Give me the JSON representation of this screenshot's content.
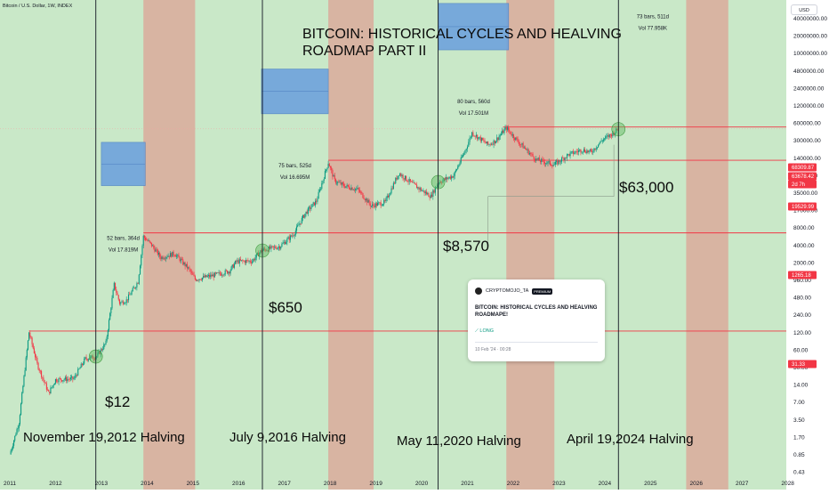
{
  "header": {
    "symbol_line": "Bitcoin / U.S. Dollar, 1W, INDEX",
    "currency_button": "USD"
  },
  "title": {
    "line1": "BITCOIN: HISTORICAL CYCLES AND HEALVING",
    "line2": "ROADMAP PART II"
  },
  "chart_data": {
    "type": "candlestick",
    "scale": "log",
    "years": [
      2011,
      2012,
      2013,
      2014,
      2015,
      2016,
      2017,
      2018,
      2019,
      2020,
      2021,
      2022,
      2023,
      2024,
      2025,
      2026,
      2027,
      2028
    ],
    "price_axis_ticks": [
      "40000000.00",
      "20000000.00",
      "10000000.00",
      "4800000.00",
      "2400000.00",
      "1200000.00",
      "600000.00",
      "300000.00",
      "140000.00",
      "70000.00",
      "35000.00",
      "17000.00",
      "8000.00",
      "4000.00",
      "2000.00",
      "960.00",
      "480.00",
      "240.00",
      "120.00",
      "60.00",
      "30.00",
      "14.00",
      "7.00",
      "3.50",
      "1.70",
      "0.85",
      "0.43"
    ],
    "price_tags": [
      {
        "label": "68309.87",
        "color": "#f23645"
      },
      {
        "label": "63678.42",
        "color": "#f23645"
      },
      {
        "label": "2d 7h",
        "color": "#f23645"
      },
      {
        "label": "19529.99",
        "color": "#f23645"
      },
      {
        "label": "1265.18",
        "color": "#f23645"
      },
      {
        "label": "31.33",
        "color": "#f23645"
      }
    ],
    "horizontal_levels": [
      68309.87,
      19529.99,
      1265.18,
      31.33
    ],
    "halvings": [
      {
        "label": "November 19,2012 Halving",
        "price_marker": "$12",
        "marker_price": 12
      },
      {
        "label": "July 9,2016 Halving",
        "price_marker": "$650",
        "marker_price": 650
      },
      {
        "label": "May 11,2020 Halving",
        "price_marker": "$8,570",
        "marker_price": 8570
      },
      {
        "label": "April 19,2024 Halving",
        "price_marker": "$63,000",
        "marker_price": 63000
      }
    ],
    "range_boxes": [
      {
        "bars": "52 bars, 364d",
        "vol": "Vol 17.819M"
      },
      {
        "bars": "75 bars, 525d",
        "vol": "Vol 16.695M"
      },
      {
        "bars": "80 bars, 560d",
        "vol": "Vol 17.501M"
      },
      {
        "bars": "73 bars, 511d",
        "vol": "Vol 77.958K"
      }
    ],
    "price_series": [
      [
        2011.0,
        0.3
      ],
      [
        2011.2,
        1
      ],
      [
        2011.42,
        30
      ],
      [
        2011.6,
        9
      ],
      [
        2011.85,
        3
      ],
      [
        2012.0,
        5
      ],
      [
        2012.4,
        5.2
      ],
      [
        2012.65,
        11
      ],
      [
        2012.9,
        12
      ],
      [
        2013.1,
        20
      ],
      [
        2013.28,
        180
      ],
      [
        2013.4,
        90
      ],
      [
        2013.55,
        100
      ],
      [
        2013.8,
        200
      ],
      [
        2013.92,
        1100
      ],
      [
        2014.1,
        800
      ],
      [
        2014.3,
        500
      ],
      [
        2014.6,
        580
      ],
      [
        2014.9,
        330
      ],
      [
        2015.05,
        220
      ],
      [
        2015.5,
        260
      ],
      [
        2015.8,
        300
      ],
      [
        2015.95,
        430
      ],
      [
        2016.3,
        440
      ],
      [
        2016.5,
        650
      ],
      [
        2016.9,
        760
      ],
      [
        2017.2,
        1200
      ],
      [
        2017.45,
        2600
      ],
      [
        2017.7,
        4200
      ],
      [
        2017.96,
        18000
      ],
      [
        2018.1,
        9000
      ],
      [
        2018.3,
        7500
      ],
      [
        2018.6,
        6500
      ],
      [
        2018.9,
        3500
      ],
      [
        2019.2,
        4000
      ],
      [
        2019.5,
        12000
      ],
      [
        2019.8,
        8000
      ],
      [
        2020.2,
        5000
      ],
      [
        2020.37,
        8570
      ],
      [
        2020.7,
        11000
      ],
      [
        2020.95,
        28000
      ],
      [
        2021.1,
        55000
      ],
      [
        2021.45,
        35000
      ],
      [
        2021.6,
        40000
      ],
      [
        2021.85,
        66000
      ],
      [
        2022.1,
        40000
      ],
      [
        2022.5,
        20000
      ],
      [
        2022.9,
        16500
      ],
      [
        2023.2,
        24000
      ],
      [
        2023.5,
        29000
      ],
      [
        2023.7,
        26500
      ],
      [
        2023.95,
        42000
      ],
      [
        2024.15,
        52000
      ],
      [
        2024.3,
        63000
      ]
    ]
  },
  "idea_card": {
    "author": "CRYPTOMOJO_TA",
    "badge": "PREMIUM",
    "title": "BITCOIN: HISTORICAL CYCLES AND HEALVING ROADMAPE!",
    "direction": "LONG",
    "date": "10 Feb '24 · 00:28"
  }
}
